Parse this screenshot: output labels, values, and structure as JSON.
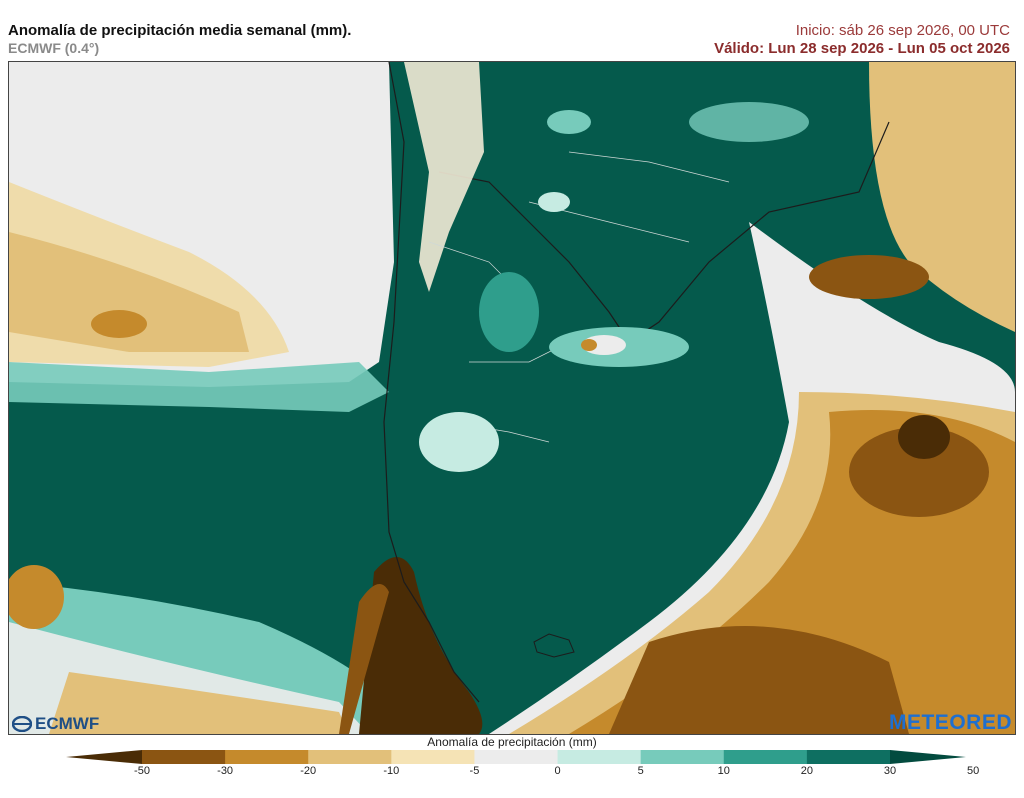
{
  "header": {
    "title": "Anomalía de precipitación media semanal (mm).",
    "subtitle": "ECMWF (0.4°)",
    "init": "Inicio:  sáb 26 sep 2026, 00 UTC",
    "valid": "Válido: Lun 28 sep 2026 - Lun 05 oct 2026"
  },
  "logos": {
    "left": "ECMWF",
    "right": "METEORED"
  },
  "colorbar": {
    "title": "Anomalía de precipitación (mm)",
    "ticks": [
      "-50",
      "-30",
      "-20",
      "-10",
      "-5",
      "0",
      "5",
      "10",
      "20",
      "30",
      "50"
    ],
    "colors": [
      "#4a2c06",
      "#8b5512",
      "#c58a2c",
      "#e2c07a",
      "#f5e3b5",
      "#ececec",
      "#c6ebe2",
      "#77cbbb",
      "#2f9e8c",
      "#0e6f61",
      "#034b3f"
    ]
  },
  "colors": {
    "dry_strong": "#8b5512",
    "dry_moderate": "#c58a2c",
    "dry_light": "#e2c07a",
    "neutral": "#ececec",
    "wet_light": "#77cbbb",
    "wet_moderate": "#0e6f61",
    "wet_strong": "#034b3f"
  }
}
